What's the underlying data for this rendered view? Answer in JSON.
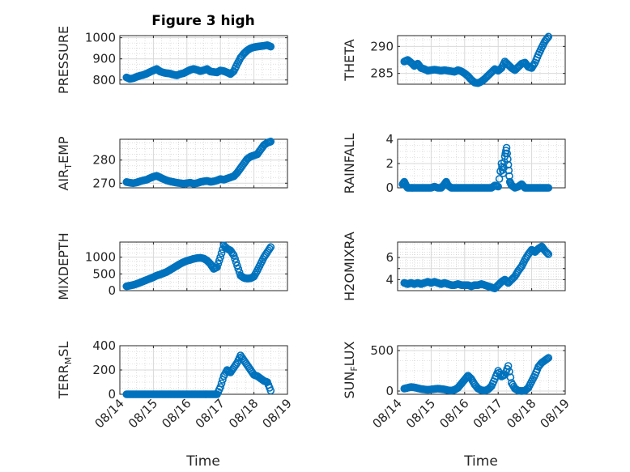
{
  "chart_data": {
    "type": "scatter",
    "figure_title": "Figure 3 high",
    "x_ticks": [
      "08/14",
      "08/15",
      "08/16",
      "08/17",
      "08/18",
      "08/19"
    ],
    "xlim": [
      0,
      5
    ],
    "xlabel": "Time",
    "marker_color": "#0072BD",
    "panels": [
      {
        "id": "pressure",
        "ylabel_parts": [
          {
            "t": "PRESSURE"
          }
        ],
        "ylim": [
          780,
          1010
        ],
        "yticks": [
          800,
          900,
          1000
        ],
        "ytick_labels": [
          "800",
          "900",
          "1000"
        ],
        "x": [
          0.2,
          0.3,
          0.4,
          0.5,
          0.6,
          0.7,
          0.8,
          0.9,
          1.0,
          1.1,
          1.2,
          1.3,
          1.4,
          1.5,
          1.6,
          1.7,
          1.8,
          1.9,
          2.0,
          2.1,
          2.2,
          2.3,
          2.4,
          2.5,
          2.6,
          2.7,
          2.8,
          2.9,
          3.0,
          3.1,
          3.2,
          3.3,
          3.4,
          3.5,
          3.6,
          3.7,
          3.8,
          3.9,
          4.0,
          4.1,
          4.2,
          4.3,
          4.4,
          4.5
        ],
        "y": [
          812,
          805,
          808,
          815,
          820,
          824,
          830,
          838,
          845,
          852,
          840,
          835,
          832,
          830,
          825,
          822,
          828,
          832,
          840,
          848,
          852,
          848,
          842,
          846,
          852,
          840,
          838,
          836,
          845,
          842,
          836,
          828,
          842,
          875,
          905,
          925,
          940,
          950,
          955,
          958,
          960,
          962,
          965,
          958
        ]
      },
      {
        "id": "theta",
        "ylabel_parts": [
          {
            "t": "THETA"
          }
        ],
        "ylim": [
          283,
          292
        ],
        "yticks": [
          285,
          290
        ],
        "ytick_labels": [
          "285",
          "290"
        ],
        "x": [
          0.2,
          0.3,
          0.4,
          0.5,
          0.6,
          0.7,
          0.8,
          0.9,
          1.0,
          1.1,
          1.2,
          1.3,
          1.4,
          1.5,
          1.6,
          1.7,
          1.8,
          1.9,
          2.0,
          2.1,
          2.2,
          2.3,
          2.4,
          2.5,
          2.6,
          2.7,
          2.8,
          2.9,
          3.0,
          3.1,
          3.2,
          3.3,
          3.4,
          3.5,
          3.6,
          3.7,
          3.8,
          3.9,
          4.0,
          4.1,
          4.2,
          4.3,
          4.4,
          4.5
        ],
        "y": [
          287.2,
          287.5,
          287.0,
          286.4,
          286.8,
          286.0,
          285.8,
          285.5,
          285.6,
          285.7,
          285.6,
          285.5,
          285.6,
          285.5,
          285.4,
          285.3,
          285.6,
          285.4,
          285.0,
          284.5,
          283.8,
          283.3,
          283.2,
          283.5,
          284.0,
          284.6,
          285.2,
          285.8,
          285.5,
          286.0,
          287.2,
          286.6,
          286.0,
          285.6,
          286.2,
          286.8,
          287.0,
          286.2,
          286.0,
          287.0,
          288.5,
          289.8,
          291.0,
          291.8
        ]
      },
      {
        "id": "air_temp",
        "ylabel_parts": [
          {
            "t": "AIR"
          },
          {
            "t": "T",
            "sub": true
          },
          {
            "t": "EMP"
          }
        ],
        "ylim": [
          268,
          289
        ],
        "yticks": [
          270,
          280
        ],
        "ytick_labels": [
          "270",
          "280"
        ],
        "x": [
          0.2,
          0.3,
          0.4,
          0.5,
          0.6,
          0.7,
          0.8,
          0.9,
          1.0,
          1.1,
          1.2,
          1.3,
          1.4,
          1.5,
          1.6,
          1.7,
          1.8,
          1.9,
          2.0,
          2.1,
          2.2,
          2.3,
          2.4,
          2.5,
          2.6,
          2.7,
          2.8,
          2.9,
          3.0,
          3.1,
          3.2,
          3.3,
          3.4,
          3.5,
          3.6,
          3.7,
          3.8,
          3.9,
          4.0,
          4.1,
          4.2,
          4.3,
          4.4,
          4.5
        ],
        "y": [
          270.5,
          270.2,
          270.0,
          270.3,
          270.8,
          271.2,
          271.5,
          272.2,
          272.8,
          273.2,
          272.5,
          271.8,
          271.2,
          270.8,
          270.5,
          270.2,
          270.0,
          269.8,
          270.0,
          270.2,
          269.8,
          270.0,
          270.5,
          270.8,
          271.0,
          270.6,
          270.8,
          271.2,
          271.8,
          271.5,
          272.0,
          272.5,
          273.0,
          274.5,
          276.5,
          278.5,
          280.5,
          281.5,
          282.0,
          282.5,
          284.5,
          286.5,
          287.5,
          288.0
        ]
      },
      {
        "id": "rainfall",
        "ylabel_parts": [
          {
            "t": "RAINFALL"
          }
        ],
        "ylim": [
          0,
          4
        ],
        "yticks": [
          0,
          2,
          4
        ],
        "ytick_labels": [
          "0",
          "2",
          "4"
        ],
        "x": [
          0.15,
          0.2,
          0.25,
          0.3,
          0.4,
          0.5,
          0.6,
          0.7,
          0.8,
          0.9,
          1.0,
          1.1,
          1.2,
          1.3,
          1.4,
          1.45,
          1.5,
          1.6,
          1.7,
          1.8,
          1.9,
          2.0,
          2.1,
          2.2,
          2.3,
          2.4,
          2.5,
          2.6,
          2.7,
          2.8,
          2.9,
          3.0,
          3.1,
          3.15,
          3.2,
          3.25,
          3.3,
          3.35,
          3.4,
          3.5,
          3.6,
          3.7,
          3.8,
          3.9,
          4.0,
          4.1,
          4.2,
          4.3,
          4.4,
          4.5
        ],
        "y": [
          0.3,
          0.5,
          0.2,
          0,
          0,
          0,
          0,
          0,
          0,
          0,
          0,
          0.1,
          0,
          0,
          0.3,
          0.5,
          0.2,
          0,
          0,
          0,
          0,
          0,
          0,
          0,
          0,
          0,
          0,
          0,
          0,
          0,
          0.2,
          0.1,
          2.0,
          1.2,
          2.6,
          3.3,
          1.9,
          0.5,
          0.2,
          0,
          0.1,
          0.3,
          0,
          0,
          0,
          0,
          0,
          0,
          0,
          0
        ]
      },
      {
        "id": "mixdepth",
        "ylabel_parts": [
          {
            "t": "MIXDEPTH"
          }
        ],
        "ylim": [
          0,
          1450
        ],
        "yticks": [
          0,
          500,
          1000
        ],
        "ytick_labels": [
          "0",
          "500",
          "1000"
        ],
        "x": [
          0.2,
          0.3,
          0.4,
          0.5,
          0.6,
          0.7,
          0.8,
          0.9,
          1.0,
          1.1,
          1.2,
          1.3,
          1.4,
          1.5,
          1.6,
          1.7,
          1.8,
          1.9,
          2.0,
          2.1,
          2.2,
          2.3,
          2.4,
          2.5,
          2.6,
          2.7,
          2.8,
          2.9,
          3.0,
          3.1,
          3.2,
          3.3,
          3.4,
          3.5,
          3.6,
          3.7,
          3.8,
          3.9,
          4.0,
          4.1,
          4.2,
          4.3,
          4.4,
          4.5
        ],
        "y": [
          130,
          150,
          170,
          200,
          240,
          280,
          320,
          360,
          400,
          450,
          480,
          520,
          560,
          620,
          680,
          740,
          800,
          850,
          890,
          920,
          950,
          970,
          980,
          960,
          900,
          800,
          650,
          700,
          1000,
          1350,
          1250,
          1200,
          1050,
          750,
          450,
          380,
          360,
          370,
          420,
          600,
          800,
          1000,
          1150,
          1300
        ]
      },
      {
        "id": "h2omixra",
        "ylabel_parts": [
          {
            "t": "H2OMIXRA"
          }
        ],
        "ylim": [
          3.0,
          7.4
        ],
        "yticks": [
          4,
          5,
          6
        ],
        "ytick_labels": [
          "4",
          "",
          "6"
        ],
        "x": [
          0.2,
          0.3,
          0.4,
          0.5,
          0.6,
          0.7,
          0.8,
          0.9,
          1.0,
          1.1,
          1.2,
          1.3,
          1.4,
          1.5,
          1.6,
          1.7,
          1.8,
          1.9,
          2.0,
          2.1,
          2.2,
          2.3,
          2.4,
          2.5,
          2.6,
          2.7,
          2.8,
          2.9,
          3.0,
          3.1,
          3.2,
          3.3,
          3.4,
          3.5,
          3.6,
          3.7,
          3.8,
          3.9,
          4.0,
          4.1,
          4.2,
          4.3,
          4.4,
          4.5
        ],
        "y": [
          3.7,
          3.6,
          3.7,
          3.6,
          3.7,
          3.6,
          3.7,
          3.8,
          3.7,
          3.8,
          3.7,
          3.6,
          3.7,
          3.6,
          3.5,
          3.5,
          3.6,
          3.5,
          3.5,
          3.5,
          3.4,
          3.5,
          3.5,
          3.6,
          3.5,
          3.4,
          3.3,
          3.2,
          3.5,
          3.8,
          4.0,
          3.7,
          4.0,
          4.3,
          4.8,
          5.2,
          5.8,
          6.3,
          6.7,
          6.5,
          6.8,
          7.0,
          6.6,
          6.3
        ]
      },
      {
        "id": "terr_msl",
        "ylabel_parts": [
          {
            "t": "TERR"
          },
          {
            "t": "M",
            "sub": true
          },
          {
            "t": "SL"
          }
        ],
        "ylim": [
          0,
          400
        ],
        "yticks": [
          0,
          200,
          400
        ],
        "ytick_labels": [
          "0",
          "200",
          "400"
        ],
        "x": [
          0.2,
          0.3,
          0.4,
          0.5,
          0.6,
          0.7,
          0.8,
          0.9,
          1.0,
          1.1,
          1.2,
          1.3,
          1.4,
          1.5,
          1.6,
          1.7,
          1.8,
          1.9,
          2.0,
          2.1,
          2.2,
          2.3,
          2.4,
          2.5,
          2.6,
          2.7,
          2.8,
          2.9,
          3.0,
          3.1,
          3.2,
          3.3,
          3.4,
          3.5,
          3.6,
          3.7,
          3.8,
          3.9,
          4.0,
          4.1,
          4.2,
          4.3,
          4.4,
          4.5
        ],
        "y": [
          0,
          0,
          0,
          0,
          0,
          0,
          0,
          0,
          0,
          0,
          0,
          0,
          0,
          0,
          0,
          0,
          0,
          0,
          0,
          0,
          0,
          0,
          0,
          0,
          0,
          0,
          0,
          0,
          60,
          150,
          200,
          180,
          220,
          260,
          320,
          280,
          240,
          200,
          160,
          150,
          130,
          110,
          100,
          30
        ]
      },
      {
        "id": "sun_flux",
        "ylabel_parts": [
          {
            "t": "SUN"
          },
          {
            "t": "F",
            "sub": true
          },
          {
            "t": "LUX"
          }
        ],
        "ylim": [
          -40,
          560
        ],
        "yticks": [
          0,
          500
        ],
        "ytick_labels": [
          "0",
          "500"
        ],
        "x": [
          0.2,
          0.3,
          0.4,
          0.5,
          0.6,
          0.7,
          0.8,
          0.9,
          1.0,
          1.1,
          1.2,
          1.3,
          1.4,
          1.5,
          1.6,
          1.7,
          1.8,
          1.9,
          2.0,
          2.1,
          2.2,
          2.3,
          2.4,
          2.5,
          2.6,
          2.7,
          2.8,
          2.9,
          3.0,
          3.1,
          3.2,
          3.3,
          3.4,
          3.5,
          3.6,
          3.7,
          3.8,
          3.9,
          4.0,
          4.1,
          4.2,
          4.3,
          4.4,
          4.5
        ],
        "y": [
          30,
          40,
          50,
          45,
          35,
          25,
          20,
          15,
          20,
          25,
          30,
          25,
          20,
          10,
          5,
          15,
          40,
          90,
          140,
          190,
          150,
          80,
          30,
          10,
          5,
          20,
          60,
          150,
          250,
          180,
          200,
          310,
          100,
          30,
          5,
          0,
          5,
          40,
          120,
          200,
          300,
          350,
          380,
          410
        ]
      }
    ]
  }
}
